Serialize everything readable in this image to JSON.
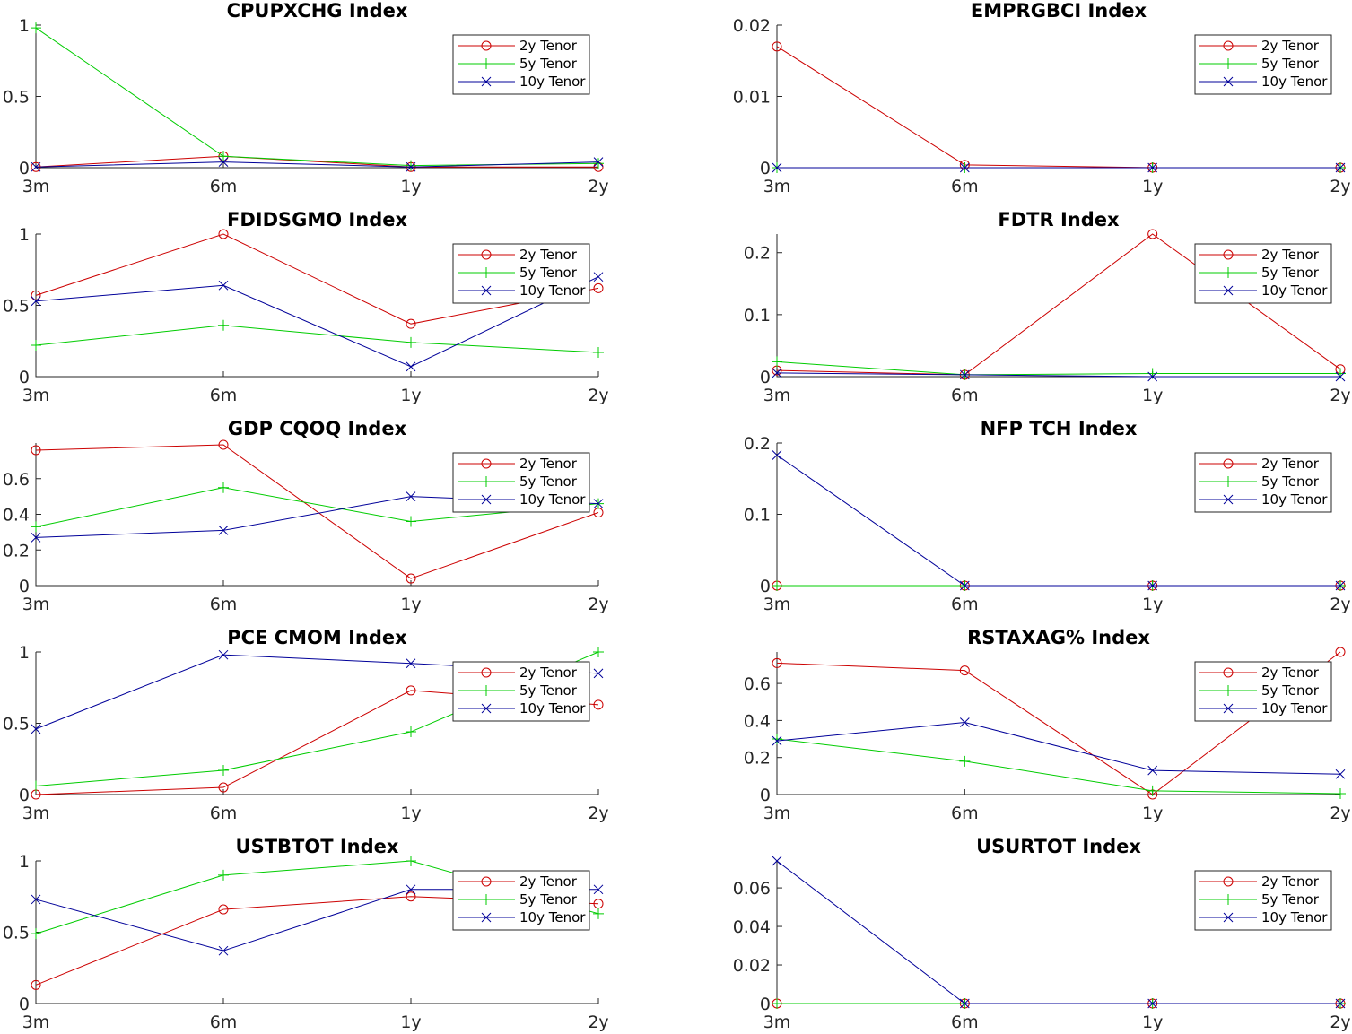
{
  "series_colors": {
    "2y Tenor": "#cc0000",
    "5y Tenor": "#00cc00",
    "10y Tenor": "#000099"
  },
  "chart_data": [
    {
      "type": "line",
      "title": "CPUPXCHG Index",
      "categories": [
        "3m",
        "6m",
        "1y",
        "2y"
      ],
      "ylim": [
        0,
        1
      ],
      "yticks": [
        0,
        0.5,
        1
      ],
      "ytick_labels": [
        "0",
        "0.5",
        "1"
      ],
      "legend": "top-right",
      "series": [
        {
          "name": "2y Tenor",
          "marker": "o",
          "values": [
            0.005,
            0.08,
            0.005,
            0.005
          ]
        },
        {
          "name": "5y Tenor",
          "marker": "+",
          "values": [
            0.98,
            0.08,
            0.015,
            0.03
          ]
        },
        {
          "name": "10y Tenor",
          "marker": "x",
          "values": [
            0.005,
            0.04,
            0.005,
            0.04
          ]
        }
      ]
    },
    {
      "type": "line",
      "title": "EMPRGBCI Index",
      "categories": [
        "3m",
        "6m",
        "1y",
        "2y"
      ],
      "ylim": [
        0,
        0.02
      ],
      "yticks": [
        0,
        0.01,
        0.02
      ],
      "ytick_labels": [
        "0",
        "0.01",
        "0.02"
      ],
      "legend": "top-right",
      "series": [
        {
          "name": "2y Tenor",
          "marker": "o",
          "values": [
            0.017,
            0.0004,
            0.0,
            0.0
          ]
        },
        {
          "name": "5y Tenor",
          "marker": "+",
          "values": [
            0.0,
            0.0,
            0.0,
            0.0
          ]
        },
        {
          "name": "10y Tenor",
          "marker": "x",
          "values": [
            0.0,
            0.0,
            0.0,
            0.0
          ]
        }
      ]
    },
    {
      "type": "line",
      "title": "FDIDSGMO Index",
      "categories": [
        "3m",
        "6m",
        "1y",
        "2y"
      ],
      "ylim": [
        0,
        1
      ],
      "yticks": [
        0,
        0.5,
        1
      ],
      "ytick_labels": [
        "0",
        "0.5",
        "1"
      ],
      "legend": "top-right",
      "series": [
        {
          "name": "2y Tenor",
          "marker": "o",
          "values": [
            0.57,
            1.0,
            0.37,
            0.62
          ]
        },
        {
          "name": "5y Tenor",
          "marker": "+",
          "values": [
            0.22,
            0.36,
            0.24,
            0.17
          ]
        },
        {
          "name": "10y Tenor",
          "marker": "x",
          "values": [
            0.53,
            0.64,
            0.07,
            0.7
          ]
        }
      ]
    },
    {
      "type": "line",
      "title": "FDTR Index",
      "categories": [
        "3m",
        "6m",
        "1y",
        "2y"
      ],
      "ylim": [
        0,
        0.23
      ],
      "yticks": [
        0,
        0.1,
        0.2
      ],
      "ytick_labels": [
        "0",
        "0.1",
        "0.2"
      ],
      "legend": "top-right",
      "series": [
        {
          "name": "2y Tenor",
          "marker": "o",
          "values": [
            0.01,
            0.003,
            0.23,
            0.012
          ]
        },
        {
          "name": "5y Tenor",
          "marker": "+",
          "values": [
            0.024,
            0.003,
            0.005,
            0.005
          ]
        },
        {
          "name": "10y Tenor",
          "marker": "x",
          "values": [
            0.006,
            0.003,
            0.0,
            0.0
          ]
        }
      ]
    },
    {
      "type": "line",
      "title": "GDP CQOQ Index",
      "categories": [
        "3m",
        "6m",
        "1y",
        "2y"
      ],
      "ylim": [
        0,
        0.8
      ],
      "yticks": [
        0,
        0.2,
        0.4,
        0.6
      ],
      "ytick_labels": [
        "0",
        "0.2",
        "0.4",
        "0.6"
      ],
      "legend": "top-right",
      "series": [
        {
          "name": "2y Tenor",
          "marker": "o",
          "values": [
            0.76,
            0.79,
            0.04,
            0.41
          ]
        },
        {
          "name": "5y Tenor",
          "marker": "+",
          "values": [
            0.33,
            0.55,
            0.36,
            0.46
          ]
        },
        {
          "name": "10y Tenor",
          "marker": "x",
          "values": [
            0.27,
            0.31,
            0.5,
            0.46
          ]
        }
      ]
    },
    {
      "type": "line",
      "title": "NFP TCH Index",
      "categories": [
        "3m",
        "6m",
        "1y",
        "2y"
      ],
      "ylim": [
        0,
        0.2
      ],
      "yticks": [
        0,
        0.1,
        0.2
      ],
      "ytick_labels": [
        "0",
        "0.1",
        "0.2"
      ],
      "legend": "top-right",
      "series": [
        {
          "name": "2y Tenor",
          "marker": "o",
          "values": [
            0.0,
            0.0,
            0.0,
            0.0
          ]
        },
        {
          "name": "5y Tenor",
          "marker": "+",
          "values": [
            0.0,
            0.0,
            0.0,
            0.0
          ]
        },
        {
          "name": "10y Tenor",
          "marker": "x",
          "values": [
            0.183,
            0.0,
            0.0,
            0.0
          ]
        }
      ]
    },
    {
      "type": "line",
      "title": "PCE CMOM Index",
      "categories": [
        "3m",
        "6m",
        "1y",
        "2y"
      ],
      "ylim": [
        0,
        1
      ],
      "yticks": [
        0,
        0.5,
        1
      ],
      "ytick_labels": [
        "0",
        "0.5",
        "1"
      ],
      "legend": "top-right",
      "series": [
        {
          "name": "2y Tenor",
          "marker": "o",
          "values": [
            0.0,
            0.05,
            0.73,
            0.63
          ]
        },
        {
          "name": "5y Tenor",
          "marker": "+",
          "values": [
            0.06,
            0.17,
            0.44,
            1.0
          ]
        },
        {
          "name": "10y Tenor",
          "marker": "x",
          "values": [
            0.46,
            0.98,
            0.92,
            0.85
          ]
        }
      ]
    },
    {
      "type": "line",
      "title": "RSTAXAG% Index",
      "categories": [
        "3m",
        "6m",
        "1y",
        "2y"
      ],
      "ylim": [
        0,
        0.77
      ],
      "yticks": [
        0,
        0.2,
        0.4,
        0.6
      ],
      "ytick_labels": [
        "0",
        "0.2",
        "0.4",
        "0.6"
      ],
      "legend": "top-right",
      "series": [
        {
          "name": "2y Tenor",
          "marker": "o",
          "values": [
            0.71,
            0.67,
            0.0,
            0.77
          ]
        },
        {
          "name": "5y Tenor",
          "marker": "+",
          "values": [
            0.3,
            0.18,
            0.02,
            0.005
          ]
        },
        {
          "name": "10y Tenor",
          "marker": "x",
          "values": [
            0.29,
            0.39,
            0.13,
            0.11
          ]
        }
      ]
    },
    {
      "type": "line",
      "title": "USTBTOT Index",
      "categories": [
        "3m",
        "6m",
        "1y",
        "2y"
      ],
      "ylim": [
        0,
        1
      ],
      "yticks": [
        0,
        0.5,
        1
      ],
      "ytick_labels": [
        "0",
        "0.5",
        "1"
      ],
      "legend": "top-right",
      "series": [
        {
          "name": "2y Tenor",
          "marker": "o",
          "values": [
            0.13,
            0.66,
            0.75,
            0.7
          ]
        },
        {
          "name": "5y Tenor",
          "marker": "+",
          "values": [
            0.49,
            0.9,
            1.0,
            0.63
          ]
        },
        {
          "name": "10y Tenor",
          "marker": "x",
          "values": [
            0.73,
            0.37,
            0.8,
            0.8
          ]
        }
      ]
    },
    {
      "type": "line",
      "title": "USURTOT Index",
      "categories": [
        "3m",
        "6m",
        "1y",
        "2y"
      ],
      "ylim": [
        0,
        0.074
      ],
      "yticks": [
        0,
        0.02,
        0.04,
        0.06
      ],
      "ytick_labels": [
        "0",
        "0.02",
        "0.04",
        "0.06"
      ],
      "legend": "top-right",
      "series": [
        {
          "name": "2y Tenor",
          "marker": "o",
          "values": [
            0.0,
            0.0,
            0.0,
            0.0
          ]
        },
        {
          "name": "5y Tenor",
          "marker": "+",
          "values": [
            0.0,
            0.0,
            0.0,
            0.0
          ]
        },
        {
          "name": "10y Tenor",
          "marker": "x",
          "values": [
            0.074,
            0.0,
            0.0,
            0.0
          ]
        }
      ]
    }
  ]
}
